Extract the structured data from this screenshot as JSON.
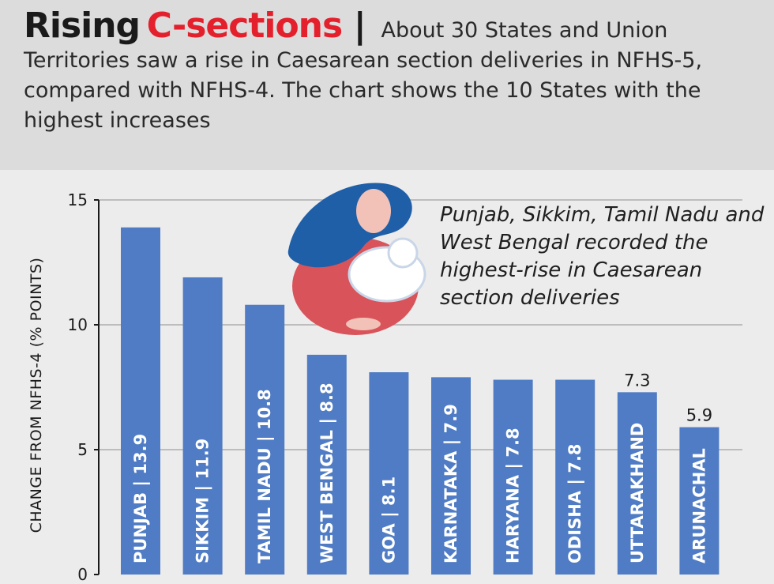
{
  "header": {
    "title_part1": "Rising",
    "title_part2": "C-sections",
    "separator": "|",
    "subtitle": "About 30 States and Union Territories saw a rise in Caesarean section deliveries in NFHS-5, compared with NFHS-4. The chart shows the 10 States with the highest increases"
  },
  "annotation": "Punjab, Sikkim, Tamil Nadu and West Bengal recorded the highest-rise in Caesarean section deliveries",
  "colors": {
    "bar": "#4f7cc4",
    "accent": "#e3202b",
    "header_bg": "#dcdcdc",
    "chart_bg": "#ececec",
    "illustration_hair": "#1f5fa8",
    "illustration_body": "#d9535a"
  },
  "chart_data": {
    "type": "bar",
    "categories": [
      "PUNJAB",
      "SIKKIM",
      "TAMIL NADU",
      "WEST BENGAL",
      "GOA",
      "KARNATAKA",
      "HARYANA",
      "ODISHA",
      "UTTARAKHAND",
      "ARUNACHAL"
    ],
    "values": [
      13.9,
      11.9,
      10.8,
      8.8,
      8.1,
      7.9,
      7.8,
      7.8,
      7.3,
      5.9
    ],
    "bar_labels": [
      "PUNJAB | 13.9",
      "SIKKIM | 11.9",
      "TAMIL NADU | 10.8",
      "WEST BENGAL | 8.8",
      "GOA | 8.1",
      "KARNATAKA | 7.9",
      "HARYANA | 7.8",
      "ODISHA | 7.8",
      "UTTARAKHAND",
      "ARUNACHAL"
    ],
    "above_labels": [
      "",
      "",
      "",
      "",
      "",
      "",
      "",
      "",
      "7.3",
      "5.9"
    ],
    "ylabel": "CHANGE FROM NFHS-4 (% POINTS)",
    "ylim": [
      0,
      15
    ],
    "yticks": [
      0,
      5,
      10,
      15
    ],
    "grid": true
  }
}
